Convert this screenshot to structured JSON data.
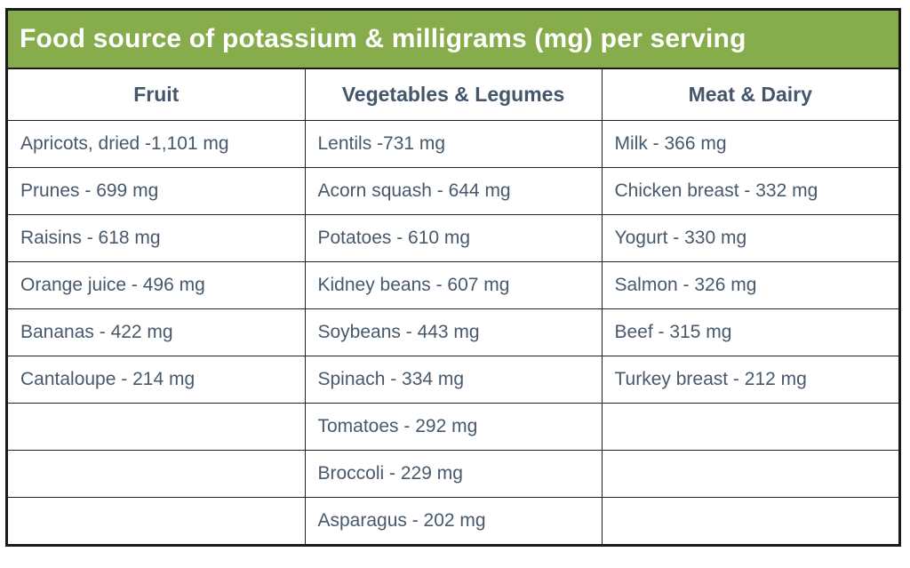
{
  "title": "Food source of potassium & milligrams (mg) per serving",
  "table": {
    "headers": [
      "Fruit",
      "Vegetables & Legumes",
      "Meat & Dairy"
    ],
    "rows": [
      [
        "Apricots, dried -1,101 mg",
        "Lentils -731 mg",
        "Milk - 366 mg"
      ],
      [
        "Prunes - 699 mg",
        "Acorn squash - 644 mg",
        "Chicken breast - 332 mg"
      ],
      [
        "Raisins - 618 mg",
        "Potatoes - 610 mg",
        "Yogurt - 330 mg"
      ],
      [
        "Orange juice - 496 mg",
        "Kidney beans - 607 mg",
        "Salmon - 326 mg"
      ],
      [
        "Bananas - 422 mg",
        "Soybeans - 443 mg",
        "Beef - 315 mg"
      ],
      [
        "Cantaloupe - 214 mg",
        "Spinach - 334 mg",
        "Turkey breast - 212 mg"
      ],
      [
        "",
        "Tomatoes - 292 mg",
        ""
      ],
      [
        "",
        "Broccoli - 229 mg",
        ""
      ],
      [
        "",
        "Asparagus - 202 mg",
        ""
      ]
    ]
  },
  "chart_data": {
    "type": "table",
    "title": "Food source of potassium & milligrams (mg) per serving",
    "unit": "mg per serving",
    "categories": [
      "Fruit",
      "Vegetables & Legumes",
      "Meat & Dairy"
    ],
    "series": [
      {
        "name": "Fruit",
        "items": [
          {
            "food": "Apricots, dried",
            "mg": 1101
          },
          {
            "food": "Prunes",
            "mg": 699
          },
          {
            "food": "Raisins",
            "mg": 618
          },
          {
            "food": "Orange juice",
            "mg": 496
          },
          {
            "food": "Bananas",
            "mg": 422
          },
          {
            "food": "Cantaloupe",
            "mg": 214
          }
        ]
      },
      {
        "name": "Vegetables & Legumes",
        "items": [
          {
            "food": "Lentils",
            "mg": 731
          },
          {
            "food": "Acorn squash",
            "mg": 644
          },
          {
            "food": "Potatoes",
            "mg": 610
          },
          {
            "food": "Kidney beans",
            "mg": 607
          },
          {
            "food": "Soybeans",
            "mg": 443
          },
          {
            "food": "Spinach",
            "mg": 334
          },
          {
            "food": "Tomatoes",
            "mg": 292
          },
          {
            "food": "Broccoli",
            "mg": 229
          },
          {
            "food": "Asparagus",
            "mg": 202
          }
        ]
      },
      {
        "name": "Meat & Dairy",
        "items": [
          {
            "food": "Milk",
            "mg": 366
          },
          {
            "food": "Chicken breast",
            "mg": 332
          },
          {
            "food": "Yogurt",
            "mg": 330
          },
          {
            "food": "Salmon",
            "mg": 326
          },
          {
            "food": "Beef",
            "mg": 315
          },
          {
            "food": "Turkey breast",
            "mg": 212
          }
        ]
      }
    ]
  },
  "colors": {
    "title_bg": "#86ac4b",
    "title_text": "#ffffff",
    "header_text": "#44566b",
    "cell_text": "#47596b",
    "border": "#1a1a1a"
  }
}
